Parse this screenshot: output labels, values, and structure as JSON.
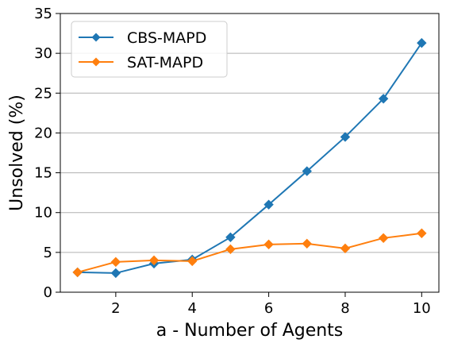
{
  "chart_data": {
    "type": "line",
    "title": "",
    "xlabel": "a - Number of Agents",
    "ylabel": "Unsolved (%)",
    "x": [
      1,
      2,
      3,
      4,
      5,
      6,
      7,
      8,
      9,
      10
    ],
    "xlim": [
      0.55,
      10.45
    ],
    "ylim": [
      0,
      35
    ],
    "xticks": [
      2,
      4,
      6,
      8,
      10
    ],
    "yticks": [
      0,
      5,
      10,
      15,
      20,
      25,
      30,
      35
    ],
    "grid": "horizontal",
    "legend_position": "top-left",
    "marker": "diamond",
    "series": [
      {
        "name": "CBS-MAPD",
        "color": "#1f77b4",
        "values": [
          2.5,
          2.4,
          3.6,
          4.1,
          6.9,
          11.0,
          15.2,
          19.5,
          24.3,
          31.3
        ]
      },
      {
        "name": "SAT-MAPD",
        "color": "#ff7f0e",
        "values": [
          2.5,
          3.8,
          4.0,
          3.9,
          5.4,
          6.0,
          6.1,
          5.5,
          6.8,
          7.4
        ]
      }
    ]
  }
}
